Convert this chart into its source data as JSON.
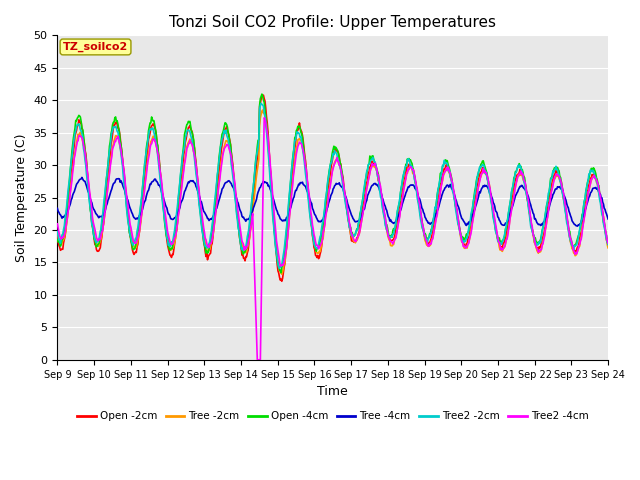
{
  "title": "Tonzi Soil CO2 Profile: Upper Temperatures",
  "xlabel": "Time",
  "ylabel": "Soil Temperature (C)",
  "ylim": [
    0,
    50
  ],
  "yticks": [
    0,
    5,
    10,
    15,
    20,
    25,
    30,
    35,
    40,
    45,
    50
  ],
  "xtick_labels": [
    "Sep 9",
    "Sep 10",
    "Sep 11",
    "Sep 12",
    "Sep 13",
    "Sep 14",
    "Sep 15",
    "Sep 16",
    "Sep 17",
    "Sep 18",
    "Sep 19",
    "Sep 20",
    "Sep 21",
    "Sep 22",
    "Sep 23",
    "Sep 24"
  ],
  "legend_labels": [
    "Open -2cm",
    "Tree -2cm",
    "Open -4cm",
    "Tree -4cm",
    "Tree2 -2cm",
    "Tree2 -4cm"
  ],
  "legend_colors": [
    "#ff0000",
    "#ff9900",
    "#00dd00",
    "#0000cc",
    "#00cccc",
    "#ff00ff"
  ],
  "bg_color": "#e8e8e8",
  "annotation_box_color": "#ffff99",
  "annotation_text": "TZ_soilco2",
  "annotation_text_color": "#cc0000",
  "title_fontsize": 11,
  "figsize": [
    6.4,
    4.8
  ],
  "dpi": 100
}
